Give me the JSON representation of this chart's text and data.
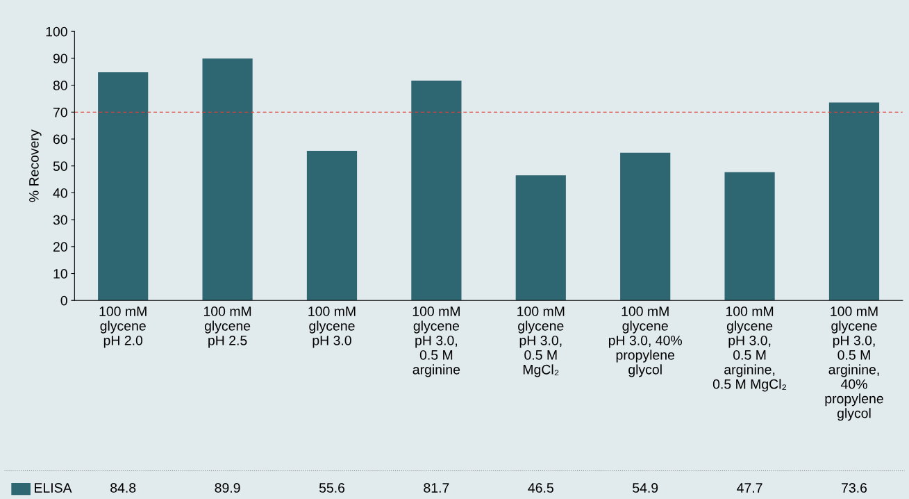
{
  "chart_data": {
    "type": "bar",
    "ylabel": "% Recovery",
    "categories": [
      "100 mM\nglycene\npH 2.0",
      "100 mM\nglycene\npH 2.5",
      "100 mM\nglycene\npH 3.0",
      "100 mM\nglycene\npH 3.0,\n0.5 M\narginine",
      "100 mM\nglycene\npH 3.0,\n0.5 M\nMgCl₂",
      "100 mM\nglycene\npH 3.0, 40%\npropylene\nglycol",
      "100 mM\nglycene\npH 3.0,\n0.5 M\narginine,\n0.5 M MgCl₂",
      "100 mM\nglycene\npH 3.0,\n0.5 M\narginine,\n40%\npropylene\nglycol"
    ],
    "series": [
      {
        "name": "ELISA",
        "color": "#2e6672",
        "values": [
          84.8,
          89.9,
          55.6,
          81.7,
          46.5,
          54.9,
          47.7,
          73.6
        ]
      }
    ],
    "ylim": [
      0,
      100
    ],
    "yticks": [
      0,
      10,
      20,
      30,
      40,
      50,
      60,
      70,
      80,
      90,
      100
    ],
    "ref_lines": [
      {
        "axis": "y",
        "value": 70,
        "color": "#e0403a",
        "line_style": "dashed"
      }
    ],
    "data_labels": true,
    "legend": "bottom",
    "grid": false
  }
}
